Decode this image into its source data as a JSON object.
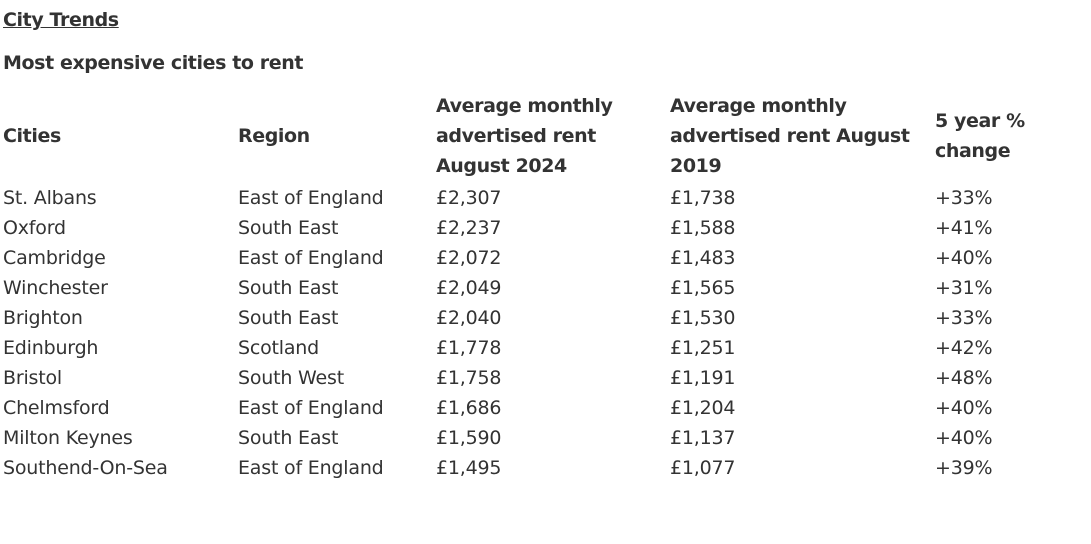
{
  "header": {
    "link_text": "City Trends",
    "table_title": "Most expensive cities to rent"
  },
  "table": {
    "columns": [
      "Cities",
      "Region",
      "Average monthly advertised rent August 2024",
      "Average monthly advertised rent August 2019",
      "5 year % change"
    ],
    "rows": [
      [
        "St. Albans",
        "East of England",
        "£2,307",
        "£1,738",
        "+33%"
      ],
      [
        "Oxford",
        "South East",
        "£2,237",
        "£1,588",
        "+41%"
      ],
      [
        "Cambridge",
        "East of England",
        "£2,072",
        "£1,483",
        "+40%"
      ],
      [
        "Winchester",
        "South East",
        "£2,049",
        "£1,565",
        "+31%"
      ],
      [
        "Brighton",
        "South East",
        "£2,040",
        "£1,530",
        "+33%"
      ],
      [
        "Edinburgh",
        "Scotland",
        "£1,778",
        "£1,251",
        "+42%"
      ],
      [
        "Bristol",
        "South West",
        "£1,758",
        "£1,191",
        "+48%"
      ],
      [
        "Chelmsford",
        "East of England",
        "£1,686",
        "£1,204",
        "+40%"
      ],
      [
        "Milton Keynes",
        "South East",
        "£1,590",
        "£1,137",
        "+40%"
      ],
      [
        "Southend-On-Sea",
        "East of England",
        "£1,495",
        "£1,077",
        "+39%"
      ]
    ]
  }
}
